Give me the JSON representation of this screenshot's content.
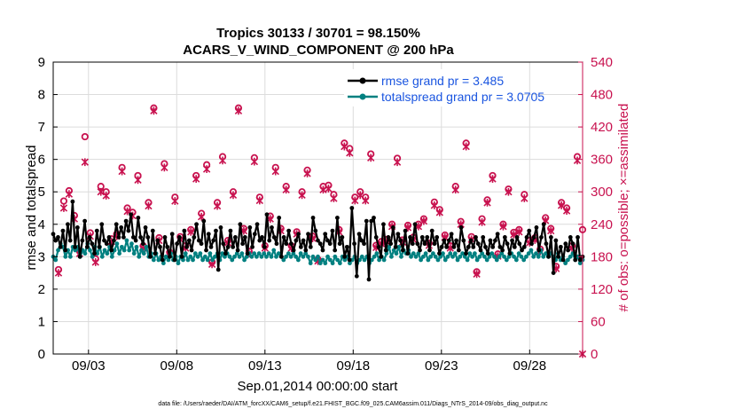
{
  "chart_data": {
    "type": "line",
    "title": "Tropics 30133 / 30701 = 98.150%",
    "subtitle": "ACARS_V_WIND_COMPONENT @ 200 hPa",
    "xlabel": "Sep.01,2014 00:00:00 start",
    "ylabel": "rmse and totalspread",
    "ylabel_right": "# of obs: o=possible; ×=assimilated",
    "footnote": "data file: /Users/raeder/DAI/ATM_forcXX/CAM6_setup/f.e21.FHIST_BGC.f09_025.CAM6assim.011/Diags_NTrS_2014-09/obs_diag_output.nc",
    "x_ticks": [
      "09/03",
      "09/08",
      "09/13",
      "09/18",
      "09/23",
      "09/28"
    ],
    "x_tick_days": [
      3,
      8,
      13,
      18,
      23,
      28
    ],
    "xlim_days": [
      1.0,
      31.0
    ],
    "y_ticks": [
      "0",
      "1",
      "2",
      "3",
      "4",
      "5",
      "6",
      "7",
      "8",
      "9"
    ],
    "ylim": [
      0,
      9
    ],
    "y2_ticks": [
      "0",
      "60",
      "120",
      "180",
      "240",
      "300",
      "360",
      "420",
      "480",
      "540"
    ],
    "y2lim": [
      0,
      540
    ],
    "grid": true,
    "legend_position": "top-right",
    "colors": {
      "rmse": "#000000",
      "spread": "#008080",
      "obs": "#c8124f",
      "legend_text": "#1a55e0"
    },
    "series": [
      {
        "name": "rmse grand pr = 3.485",
        "axis": "left",
        "color": "#000000",
        "marker": "dot",
        "values": [
          3.7,
          3.5,
          3.6,
          3.3,
          3.8,
          3.2,
          4.0,
          3.5,
          4.7,
          3.3,
          3.9,
          3.0,
          3.5,
          4.1,
          3.3,
          3.6,
          3.4,
          3.1,
          3.8,
          3.3,
          4.0,
          3.5,
          3.4,
          3.6,
          3.2,
          3.5,
          4.0,
          3.6,
          3.9,
          3.6,
          4.1,
          3.8,
          4.3,
          3.6,
          3.5,
          4.2,
          3.6,
          3.4,
          3.9,
          3.6,
          3.0,
          3.8,
          3.1,
          3.5,
          3.3,
          2.9,
          3.6,
          3.3,
          3.0,
          3.7,
          2.9,
          3.4,
          3.6,
          3.0,
          3.8,
          3.3,
          3.5,
          3.2,
          3.6,
          4.0,
          3.5,
          3.4,
          4.1,
          3.2,
          3.7,
          3.3,
          3.5,
          3.8,
          2.6,
          3.9,
          3.4,
          3.1,
          3.3,
          3.8,
          3.3,
          3.6,
          3.2,
          4.0,
          3.4,
          3.6,
          3.1,
          3.9,
          3.3,
          3.7,
          4.0,
          3.5,
          3.6,
          3.3,
          4.3,
          3.5,
          3.9,
          3.6,
          3.4,
          4.2,
          3.0,
          3.6,
          3.4,
          3.8,
          3.4,
          3.2,
          3.5,
          3.7,
          3.3,
          3.5,
          3.2,
          3.7,
          3.3,
          4.2,
          3.8,
          3.5,
          3.4,
          3.2,
          3.7,
          3.5,
          3.4,
          3.8,
          3.2,
          4.2,
          3.4,
          3.6,
          3.0,
          3.3,
          2.9,
          4.5,
          3.4,
          2.4,
          3.7,
          3.5,
          3.4,
          4.1,
          2.3,
          4.1,
          4.2,
          3.6,
          3.3,
          3.0,
          4.0,
          3.2,
          3.6,
          3.4,
          3.9,
          3.3,
          3.7,
          3.5,
          3.2,
          3.8,
          3.1,
          3.6,
          3.4,
          4.0,
          3.4,
          3.2,
          3.6,
          3.4,
          3.6,
          3.2,
          3.8,
          3.4,
          3.6,
          3.1,
          3.3,
          3.5,
          3.3,
          3.5,
          3.7,
          3.3,
          3.5,
          3.2,
          3.9,
          3.5,
          3.1,
          3.3,
          3.5,
          3.3,
          3.6,
          3.4,
          3.2,
          3.6,
          3.3,
          3.1,
          3.5,
          3.3,
          3.5,
          3.7,
          3.3,
          3.2,
          3.6,
          3.4,
          3.1,
          3.5,
          3.3,
          3.6,
          3.4,
          3.2,
          3.3,
          3.6,
          3.8,
          3.4,
          3.6,
          3.9,
          3.2,
          3.6,
          4.0,
          3.4,
          3.0,
          3.6,
          2.5,
          3.5,
          3.0,
          3.3,
          2.9,
          3.4,
          3.2,
          3.6,
          3.4,
          2.9,
          3.6,
          2.9,
          3.0
        ]
      },
      {
        "name": "totalspread grand pr = 3.0705",
        "axis": "left",
        "color": "#008080",
        "marker": "dot",
        "values": [
          3.0,
          2.9,
          3.2,
          3.4,
          3.3,
          3.0,
          3.2,
          3.0,
          3.3,
          3.2,
          3.3,
          3.0,
          3.2,
          3.1,
          3.4,
          3.2,
          3.0,
          3.3,
          3.1,
          3.3,
          3.0,
          3.2,
          3.1,
          3.3,
          3.0,
          3.2,
          3.4,
          3.1,
          3.3,
          3.2,
          3.5,
          3.2,
          3.4,
          3.1,
          3.3,
          3.0,
          3.2,
          3.1,
          3.3,
          3.0,
          3.1,
          2.9,
          3.1,
          2.9,
          3.0,
          2.8,
          3.0,
          2.9,
          3.1,
          2.9,
          3.0,
          2.8,
          3.0,
          2.9,
          3.1,
          2.9,
          3.0,
          2.9,
          3.1,
          3.0,
          3.1,
          2.9,
          3.0,
          2.9,
          3.1,
          2.9,
          3.0,
          3.1,
          2.9,
          3.1,
          3.0,
          3.1,
          3.0,
          2.9,
          3.0,
          3.1,
          3.0,
          3.1,
          2.9,
          3.0,
          3.1,
          3.0,
          3.1,
          3.0,
          3.1,
          3.0,
          3.1,
          3.0,
          3.1,
          3.0,
          3.2,
          3.0,
          3.1,
          3.0,
          2.9,
          3.0,
          3.1,
          3.0,
          3.1,
          3.0,
          2.9,
          3.1,
          3.0,
          3.1,
          3.0,
          2.8,
          3.0,
          2.9,
          3.0,
          2.8,
          2.9,
          2.8,
          3.0,
          2.9,
          2.8,
          3.0,
          2.9,
          2.8,
          3.0,
          2.9,
          3.0,
          2.8,
          2.9,
          3.0,
          2.8,
          2.9,
          3.0,
          2.9,
          3.0,
          2.8,
          2.9,
          3.0,
          3.1,
          2.9,
          3.0,
          2.9,
          3.1,
          3.3,
          3.0,
          3.2,
          3.1,
          3.3,
          3.0,
          3.2,
          3.1,
          3.2,
          3.0,
          3.1,
          3.0,
          3.1,
          2.9,
          3.0,
          3.1,
          2.9,
          3.0,
          3.1,
          3.0,
          2.9,
          3.0,
          3.1,
          2.9,
          3.0,
          3.1,
          3.0,
          3.1,
          2.9,
          3.0,
          3.1,
          3.0,
          2.9,
          3.1,
          3.0,
          3.1,
          2.9,
          3.0,
          3.1,
          3.0,
          2.9,
          3.0,
          3.1,
          3.0,
          2.9,
          3.0,
          3.1,
          3.0,
          2.9,
          3.0,
          3.1,
          3.0,
          2.9,
          3.1,
          3.0,
          2.9,
          3.0,
          3.1,
          3.2,
          3.0,
          3.1,
          3.0,
          3.2,
          3.0,
          3.1,
          3.0,
          3.1,
          3.0,
          2.9,
          3.1,
          2.9,
          3.0,
          2.8,
          2.9,
          3.0,
          3.1,
          2.9,
          3.0,
          2.8,
          2.9
        ]
      },
      {
        "name": "possible",
        "axis": "right",
        "color": "#c8124f",
        "marker": "circle",
        "x_days": [
          1.3,
          1.6,
          1.9,
          2.2,
          2.5,
          2.8,
          3.1,
          3.4,
          3.7,
          4.0,
          4.3,
          4.6,
          4.9,
          5.2,
          5.5,
          5.8,
          6.1,
          6.4,
          6.7,
          7.0,
          7.3,
          7.6,
          7.9,
          8.2,
          8.5,
          8.8,
          9.1,
          9.4,
          9.7,
          10.0,
          10.3,
          10.6,
          10.9,
          11.2,
          11.5,
          11.8,
          12.1,
          12.4,
          12.7,
          13.0,
          13.3,
          13.6,
          13.9,
          14.2,
          14.5,
          14.8,
          15.1,
          15.4,
          15.7,
          16.0,
          16.3,
          16.6,
          16.9,
          17.2,
          17.5,
          17.8,
          18.1,
          18.4,
          18.7,
          19.0,
          19.3,
          19.6,
          19.9,
          20.2,
          20.5,
          20.8,
          21.1,
          21.4,
          21.7,
          22.0,
          22.3,
          22.6,
          22.9,
          23.2,
          23.5,
          23.8,
          24.1,
          24.4,
          24.7,
          25.0,
          25.3,
          25.6,
          25.9,
          26.2,
          26.5,
          26.8,
          27.1,
          27.4,
          27.7,
          28.0,
          28.3,
          28.6,
          28.9,
          29.2,
          29.5,
          29.8,
          30.1,
          30.4,
          30.7,
          31.0
        ],
        "values": [
          156,
          283,
          302,
          256,
          190,
          402,
          224,
          176,
          310,
          300,
          213,
          222,
          345,
          270,
          262,
          330,
          200,
          280,
          455,
          215,
          352,
          188,
          290,
          217,
          200,
          230,
          330,
          260,
          350,
          170,
          280,
          365,
          210,
          300,
          455,
          232,
          190,
          363,
          290,
          200,
          255,
          345,
          232,
          310,
          200,
          226,
          300,
          340,
          218,
          175,
          310,
          312,
          295,
          230,
          390,
          380,
          290,
          300,
          290,
          370,
          201,
          208,
          212,
          240,
          362,
          211,
          238,
          216,
          240,
          250,
          205,
          281,
          267,
          220,
          200,
          310,
          245,
          390,
          217,
          152,
          250,
          285,
          330,
          185,
          240,
          305,
          225,
          230,
          295,
          210,
          215,
          194,
          252,
          232,
          162,
          280,
          270,
          200,
          365,
          230
        ]
      },
      {
        "name": "assimilated",
        "axis": "right",
        "color": "#c8124f",
        "marker": "x",
        "x_days": [
          1.3,
          1.6,
          1.9,
          2.2,
          2.5,
          2.8,
          3.1,
          3.4,
          3.7,
          4.0,
          4.3,
          4.6,
          4.9,
          5.2,
          5.5,
          5.8,
          6.1,
          6.4,
          6.7,
          7.0,
          7.3,
          7.6,
          7.9,
          8.2,
          8.5,
          8.8,
          9.1,
          9.4,
          9.7,
          10.0,
          10.3,
          10.6,
          10.9,
          11.2,
          11.5,
          11.8,
          12.1,
          12.4,
          12.7,
          13.0,
          13.3,
          13.6,
          13.9,
          14.2,
          14.5,
          14.8,
          15.1,
          15.4,
          15.7,
          16.0,
          16.3,
          16.6,
          16.9,
          17.2,
          17.5,
          17.8,
          18.1,
          18.4,
          18.7,
          19.0,
          19.3,
          19.6,
          19.9,
          20.2,
          20.5,
          20.8,
          21.1,
          21.4,
          21.7,
          22.0,
          22.3,
          22.6,
          22.9,
          23.2,
          23.5,
          23.8,
          24.1,
          24.4,
          24.7,
          25.0,
          25.3,
          25.6,
          25.9,
          26.2,
          26.5,
          26.8,
          27.1,
          27.4,
          27.7,
          28.0,
          28.3,
          28.6,
          28.9,
          29.2,
          29.5,
          29.8,
          30.1,
          30.4,
          30.7,
          31.0
        ],
        "values": [
          150,
          270,
          296,
          250,
          186,
          355,
          218,
          170,
          300,
          293,
          208,
          218,
          338,
          264,
          256,
          322,
          196,
          274,
          450,
          210,
          345,
          184,
          283,
          212,
          196,
          226,
          324,
          254,
          342,
          166,
          274,
          358,
          206,
          294,
          450,
          228,
          186,
          356,
          284,
          196,
          250,
          338,
          228,
          304,
          196,
          222,
          294,
          334,
          214,
          172,
          304,
          306,
          288,
          226,
          384,
          372,
          284,
          294,
          284,
          363,
          197,
          204,
          208,
          236,
          355,
          207,
          234,
          212,
          236,
          246,
          201,
          275,
          262,
          216,
          196,
          304,
          240,
          384,
          212,
          148,
          244,
          280,
          324,
          181,
          236,
          300,
          221,
          226,
          288,
          206,
          211,
          190,
          247,
          228,
          158,
          275,
          265,
          196,
          358,
          0
        ]
      }
    ]
  }
}
